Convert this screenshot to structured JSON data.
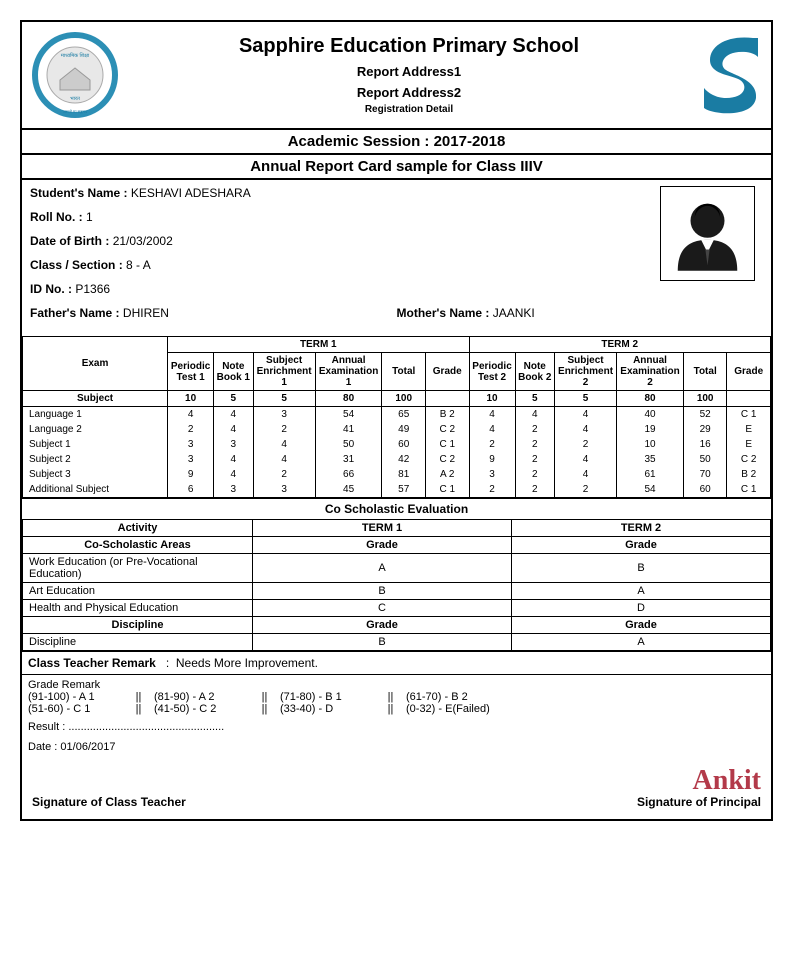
{
  "header": {
    "school_name": "Sapphire Education Primary School",
    "addr1": "Report Address1",
    "addr2": "Report Address2",
    "registration": "Registration Detail"
  },
  "session_title": "Academic Session : 2017-2018",
  "report_title": "Annual Report Card sample for Class IIIV",
  "student": {
    "name_label": "Student's Name :",
    "name": "KESHAVI ADESHARA",
    "roll_label": "Roll No. :",
    "roll": "1",
    "dob_label": "Date of  Birth :",
    "dob": "21/03/2002",
    "class_label": "Class / Section :",
    "class": "8 - A",
    "id_label": "ID No. :",
    "id": "P1366",
    "father_label": "Father's Name :",
    "father": "DHIREN",
    "mother_label": "Mother's Name :",
    "mother": "JAANKI"
  },
  "marks": {
    "headers": {
      "exam": "Exam",
      "subject": "Subject",
      "term1": "TERM 1",
      "term2": "TERM 2",
      "pt1": "Periodic Test 1",
      "nb1": "Note Book 1",
      "se1": "Subject Enrichment 1",
      "ae1": "Annual Examination 1",
      "total": "Total",
      "grade": "Grade",
      "pt2": "Periodic Test 2",
      "nb2": "Note Book 2",
      "se2": "Subject Enrichment 2",
      "ae2": "Annual Examination 2",
      "max": {
        "pt": "10",
        "nb": "5",
        "se": "5",
        "ae": "80",
        "total": "100"
      }
    },
    "rows": [
      {
        "subject": "Language 1",
        "t1": {
          "pt": "4",
          "nb": "4",
          "se": "3",
          "ae": "54",
          "total": "65",
          "grade": "B 2"
        },
        "t2": {
          "pt": "4",
          "nb": "4",
          "se": "4",
          "ae": "40",
          "total": "52",
          "grade": "C 1"
        }
      },
      {
        "subject": "Language 2",
        "t1": {
          "pt": "2",
          "nb": "4",
          "se": "2",
          "ae": "41",
          "total": "49",
          "grade": "C 2"
        },
        "t2": {
          "pt": "4",
          "nb": "2",
          "se": "4",
          "ae": "19",
          "total": "29",
          "grade": "E"
        }
      },
      {
        "subject": "Subject 1",
        "t1": {
          "pt": "3",
          "nb": "3",
          "se": "4",
          "ae": "50",
          "total": "60",
          "grade": "C 1"
        },
        "t2": {
          "pt": "2",
          "nb": "2",
          "se": "2",
          "ae": "10",
          "total": "16",
          "grade": "E"
        }
      },
      {
        "subject": "Subject 2",
        "t1": {
          "pt": "3",
          "nb": "4",
          "se": "4",
          "ae": "31",
          "total": "42",
          "grade": "C 2"
        },
        "t2": {
          "pt": "9",
          "nb": "2",
          "se": "4",
          "ae": "35",
          "total": "50",
          "grade": "C 2"
        }
      },
      {
        "subject": "Subject 3",
        "t1": {
          "pt": "9",
          "nb": "4",
          "se": "2",
          "ae": "66",
          "total": "81",
          "grade": "A 2"
        },
        "t2": {
          "pt": "3",
          "nb": "2",
          "se": "4",
          "ae": "61",
          "total": "70",
          "grade": "B 2"
        }
      },
      {
        "subject": "Additional Subject",
        "t1": {
          "pt": "6",
          "nb": "3",
          "se": "3",
          "ae": "45",
          "total": "57",
          "grade": "C 1"
        },
        "t2": {
          "pt": "2",
          "nb": "2",
          "se": "2",
          "ae": "54",
          "total": "60",
          "grade": "C 1"
        }
      }
    ]
  },
  "co_title": "Co Scholastic Evaluation",
  "co": {
    "activity": "Activity",
    "areas": "Co-Scholastic Areas",
    "discipline_header": "Discipline",
    "term1": "TERM 1",
    "term2": "TERM 2",
    "grade_label": "Grade",
    "rows": [
      {
        "name": "Work Education (or Pre-Vocational Education)",
        "t1": "A",
        "t2": "B"
      },
      {
        "name": "Art Education",
        "t1": "B",
        "t2": "A"
      },
      {
        "name": "Health and Physical Education",
        "t1": "C",
        "t2": "D"
      }
    ],
    "discipline": {
      "name": "Discipline",
      "t1": "B",
      "t2": "A"
    }
  },
  "remark": {
    "label": "Class Teacher Remark",
    "sep": ":",
    "text": "Needs More Improvement."
  },
  "grade_remark": {
    "title": "Grade Remark",
    "items": [
      {
        "a": "(91-100) - A 1",
        "b": "(81-90) - A 2",
        "c": "(71-80) - B 1",
        "d": "(61-70) - B 2"
      },
      {
        "a": "(51-60) - C 1",
        "b": "(41-50) - C 2",
        "c": "(33-40) - D",
        "d": "(0-32) - E(Failed)"
      }
    ],
    "sep": "||"
  },
  "result": {
    "label": "Result :",
    "dots": "..................................................."
  },
  "date": {
    "label": "Date :",
    "value": "01/06/2017"
  },
  "sign": {
    "teacher": "Signature of Class Teacher",
    "principal": "Signature of Principal",
    "signature_text": "Ankit"
  },
  "colors": {
    "logo_ring": "#2c8fb5",
    "logo_inner": "#d0d0d0",
    "s_logo": "#1a7ca3",
    "sig": "#b33a4a"
  }
}
